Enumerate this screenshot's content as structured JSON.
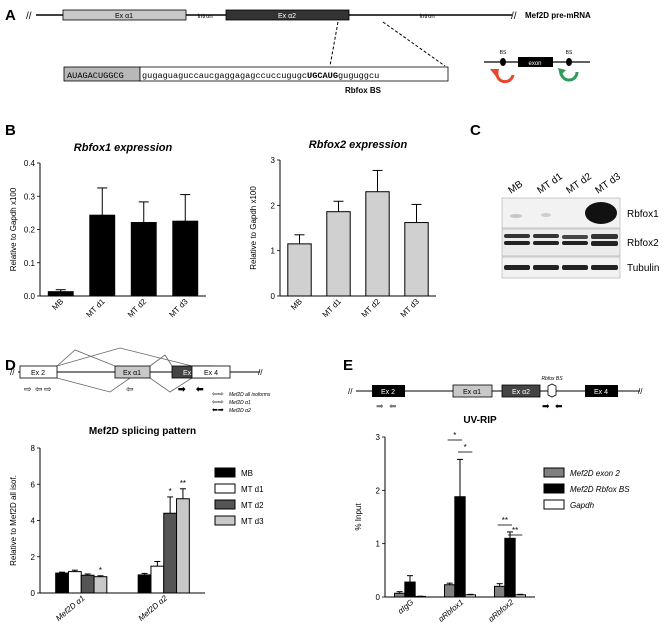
{
  "panels": {
    "a": "A",
    "b": "B",
    "c": "C",
    "d": "D",
    "e": "E"
  },
  "panelA": {
    "exon_a1": "Ex α1",
    "exon_a2": "Ex α2",
    "intron1": "Intron",
    "intron2": "Intron",
    "gene_label": "Mef2D pre-mRNA",
    "seq_exon": "AUAGACUGGCG",
    "seq_intron_pre": "gugaguaguc",
    "seq_intron_mid": "caucgaggagagccuccugugc",
    "seq_bs": "UGCAUG",
    "seq_intron_post": "guguggcu",
    "bs_label": "Rbfox BS",
    "schematic_bs_left": "BS",
    "schematic_bs_right": "BS",
    "schematic_exon": "exon"
  },
  "panelB": {
    "colors": {
      "bar_rbfox1": "#000000",
      "bar_rbfox2": "#d0d0d0"
    },
    "charts": [
      {
        "title": "Rbfox1 expression",
        "ylabel": "Relative to Gapdh x100",
        "type": "bar",
        "categories": [
          "MB",
          "MT d1",
          "MT d2",
          "MT d3"
        ],
        "values": [
          0.013,
          0.243,
          0.221,
          0.225
        ],
        "errors": [
          0.006,
          0.082,
          0.062,
          0.08
        ],
        "ylim": [
          0,
          0.4
        ],
        "yticks": [
          "0.0",
          "0.1",
          "0.2",
          "0.3",
          "0.4"
        ]
      },
      {
        "title": "Rbfox2 expression",
        "ylabel": "Relative to Gapdh x100",
        "type": "bar",
        "categories": [
          "MB",
          "MT d1",
          "MT d2",
          "MT d3"
        ],
        "values": [
          1.15,
          1.86,
          2.3,
          1.62
        ],
        "errors": [
          0.2,
          0.23,
          0.47,
          0.4
        ],
        "ylim": [
          0,
          3
        ],
        "yticks": [
          "0",
          "1",
          "2",
          "3"
        ]
      }
    ]
  },
  "panelC": {
    "lanes": [
      "MB",
      "MT d1",
      "MT d2",
      "MT d3"
    ],
    "rows": [
      "Rbfox1",
      "Rbfox2",
      "Tubulin"
    ]
  },
  "panelD": {
    "exons": [
      "Ex 2",
      "Ex α1",
      "Ex α2",
      "Ex 4"
    ],
    "primer_legend": [
      "Mef2D all isoforms",
      "Mef2D α1",
      "Mef2D α2"
    ],
    "chart": {
      "title": "Mef2D splicing pattern",
      "ylabel": "Relative to Mef2D all isof.",
      "type": "bar",
      "groups": [
        "Mef2D α1",
        "Mef2D α2"
      ],
      "series": [
        {
          "name": "MB",
          "color": "#000000",
          "values": [
            1.1,
            1.0
          ],
          "errors": [
            0.05,
            0.08
          ]
        },
        {
          "name": "MT d1",
          "color": "#ffffff",
          "values": [
            1.18,
            1.48
          ],
          "errors": [
            0.08,
            0.26
          ]
        },
        {
          "name": "MT d2",
          "color": "#555555",
          "values": [
            0.98,
            4.4
          ],
          "errors": [
            0.07,
            0.9
          ]
        },
        {
          "name": "MT d3",
          "color": "#c8c8c8",
          "values": [
            0.9,
            5.2
          ],
          "errors": [
            0.05,
            0.55
          ]
        }
      ],
      "significance": [
        {
          "group": 0,
          "series": 3,
          "label": "*"
        },
        {
          "group": 1,
          "series": 2,
          "label": "*"
        },
        {
          "group": 1,
          "series": 3,
          "label": "**"
        }
      ],
      "ylim": [
        0,
        8
      ],
      "yticks": [
        "0",
        "2",
        "4",
        "6",
        "8"
      ]
    }
  },
  "panelE": {
    "exons": [
      "Ex 2",
      "Ex α1",
      "Ex α2",
      "Ex 4"
    ],
    "bs_label": "Rbfox BS",
    "chart": {
      "title": "UV-RIP",
      "ylabel": "% Input",
      "type": "bar",
      "groups": [
        "αIgG",
        "αRbfox1",
        "αRbfox2"
      ],
      "series": [
        {
          "name": "Mef2D exon 2",
          "color": "#808080",
          "values": [
            0.07,
            0.23,
            0.2
          ],
          "errors": [
            0.03,
            0.03,
            0.05
          ]
        },
        {
          "name": "Mef2D Rbfox BS",
          "color": "#000000",
          "values": [
            0.28,
            1.88,
            1.1
          ],
          "errors": [
            0.12,
            0.7,
            0.12
          ]
        },
        {
          "name": "Gapdh",
          "color": "#ffffff",
          "values": [
            0.01,
            0.04,
            0.04
          ],
          "errors": [
            0.005,
            0.01,
            0.01
          ]
        }
      ],
      "significance": [
        "*",
        "*",
        "**",
        "**"
      ],
      "ylim": [
        0,
        3
      ],
      "yticks": [
        "0",
        "1",
        "2",
        "3"
      ]
    }
  }
}
